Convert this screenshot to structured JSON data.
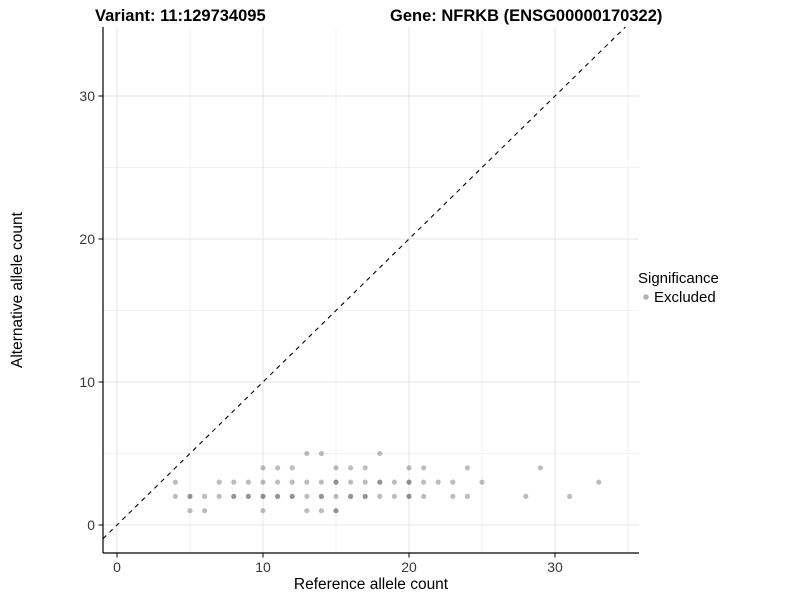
{
  "page": {
    "background": "#ffffff"
  },
  "header": {
    "title_left": "Variant: 11:129734095",
    "title_right": "Gene: NFRKB (ENSG00000170322)"
  },
  "chart_data": {
    "type": "scatter",
    "title": "Variant: 11:129734095   Gene: NFRKB (ENSG00000170322)",
    "xlabel": "Reference allele count",
    "ylabel": "Alternative allele count",
    "xlim": [
      -1,
      36
    ],
    "ylim": [
      -2,
      35
    ],
    "xticks": [
      0,
      10,
      20,
      30
    ],
    "yticks": [
      0,
      10,
      20,
      30
    ],
    "xminor": [
      5,
      15,
      25,
      35
    ],
    "yminor": [
      5,
      15,
      25
    ],
    "grid": true,
    "identity_line": {
      "slope": 1,
      "intercept": 0,
      "style": "dashed",
      "color": "#000000"
    },
    "legend": {
      "title": "Significance",
      "position": "right",
      "items": [
        {
          "label": "Excluded",
          "color": "#b3b3b3"
        }
      ]
    },
    "series": [
      {
        "name": "Excluded",
        "color": "#000000",
        "base_opacity": 0.26,
        "overlap_opacity": 0.42,
        "point_radius": 2.6,
        "points": [
          [
            5,
            1
          ],
          [
            6,
            1
          ],
          [
            10,
            1
          ],
          [
            13,
            1
          ],
          [
            14,
            1
          ],
          [
            15,
            1
          ],
          [
            4,
            2
          ],
          [
            5,
            2
          ],
          [
            6,
            2
          ],
          [
            7,
            2
          ],
          [
            8,
            2
          ],
          [
            9,
            2
          ],
          [
            10,
            2
          ],
          [
            11,
            2
          ],
          [
            12,
            2
          ],
          [
            13,
            2
          ],
          [
            14,
            2
          ],
          [
            15,
            2
          ],
          [
            16,
            2
          ],
          [
            17,
            2
          ],
          [
            18,
            2
          ],
          [
            19,
            2
          ],
          [
            20,
            2
          ],
          [
            21,
            2
          ],
          [
            23,
            2
          ],
          [
            24,
            2
          ],
          [
            28,
            2
          ],
          [
            31,
            2
          ],
          [
            4,
            3
          ],
          [
            7,
            3
          ],
          [
            8,
            3
          ],
          [
            9,
            3
          ],
          [
            10,
            3
          ],
          [
            11,
            3
          ],
          [
            12,
            3
          ],
          [
            13,
            3
          ],
          [
            14,
            3
          ],
          [
            15,
            3
          ],
          [
            16,
            3
          ],
          [
            17,
            3
          ],
          [
            18,
            3
          ],
          [
            19,
            3
          ],
          [
            20,
            3
          ],
          [
            21,
            3
          ],
          [
            22,
            3
          ],
          [
            23,
            3
          ],
          [
            25,
            3
          ],
          [
            33,
            3
          ],
          [
            10,
            4
          ],
          [
            11,
            4
          ],
          [
            12,
            4
          ],
          [
            15,
            4
          ],
          [
            16,
            4
          ],
          [
            17,
            4
          ],
          [
            20,
            4
          ],
          [
            21,
            4
          ],
          [
            24,
            4
          ],
          [
            29,
            4
          ],
          [
            13,
            5
          ],
          [
            14,
            5
          ],
          [
            18,
            5
          ]
        ],
        "overlap_points": [
          [
            5,
            2
          ],
          [
            8,
            2
          ],
          [
            9,
            2
          ],
          [
            10,
            2
          ],
          [
            11,
            2
          ],
          [
            12,
            2
          ],
          [
            14,
            2
          ],
          [
            16,
            2
          ],
          [
            17,
            2
          ],
          [
            20,
            2
          ],
          [
            15,
            3
          ],
          [
            18,
            3
          ],
          [
            20,
            3
          ],
          [
            15,
            1
          ]
        ]
      }
    ]
  }
}
